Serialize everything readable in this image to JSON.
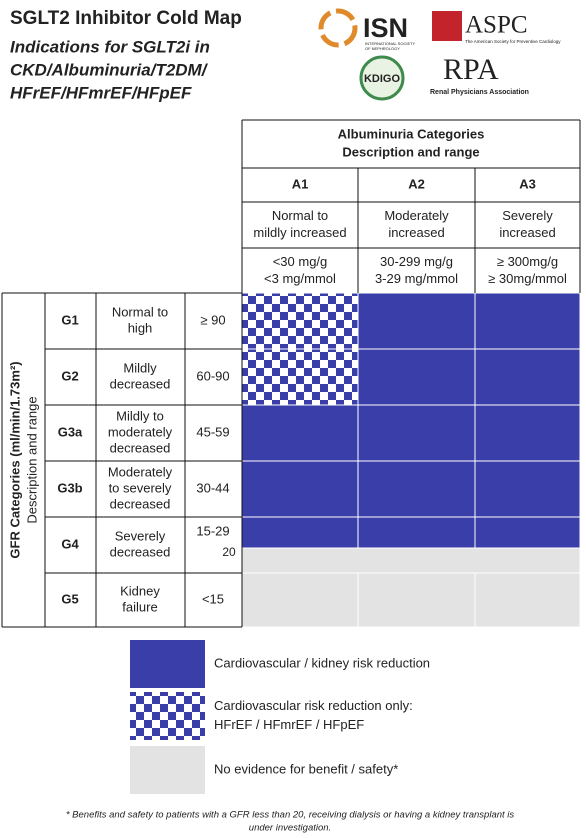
{
  "header": {
    "title": "SGLT2 Inhibitor Cold Map",
    "subtitle": [
      "Indications for SGLT2i in",
      "CKD/Albuminuria/T2DM/",
      "HFrEF/HFmrEF/HFpEF"
    ]
  },
  "logos": {
    "isn": "ISN",
    "isn_sub": [
      "INTERNATIONAL SOCIETY",
      "OF NEPHROLOGY"
    ],
    "aspc": "ASPC",
    "aspc_sub": "The American Society for Preventive Cardiology",
    "kdigo": "KDIGO",
    "rpa": "RPA",
    "rpa_sub": "Renal Physicians Association"
  },
  "table": {
    "albuminuria_title": [
      "Albuminuria Categories",
      "Description and range"
    ],
    "columns": [
      {
        "code": "A1",
        "description": [
          "Normal to",
          "mildly increased"
        ],
        "range": [
          "<30 mg/g",
          "<3 mg/mmol"
        ]
      },
      {
        "code": "A2",
        "description": [
          "Moderately",
          "increased"
        ],
        "range": [
          "30-299 mg/g",
          "3-29 mg/mmol"
        ]
      },
      {
        "code": "A3",
        "description": [
          "Severely",
          "increased"
        ],
        "range": [
          "≥ 300mg/g",
          "≥ 30mg/mmol"
        ]
      }
    ],
    "gfr_title": "GFR Categories (ml/min/1.73m²)",
    "gfr_subtitle": "Description and range",
    "rows": [
      {
        "code": "G1",
        "description": [
          "Normal to",
          "high"
        ],
        "range": [
          "≥ 90"
        ]
      },
      {
        "code": "G2",
        "description": [
          "Mildly",
          "decreased"
        ],
        "range": [
          "60-90"
        ]
      },
      {
        "code": "G3a",
        "description": [
          "Mildly to",
          "moderately",
          "decreased"
        ],
        "range": [
          "45-59"
        ]
      },
      {
        "code": "G3b",
        "description": [
          "Moderately",
          "to severely",
          "decreased"
        ],
        "range": [
          "30-44"
        ]
      },
      {
        "code": "G4",
        "description": [
          "Severely",
          "decreased"
        ],
        "range": [
          "15-29",
          "20"
        ]
      },
      {
        "code": "G5",
        "description": [
          "Kidney",
          "failure"
        ],
        "range": [
          "<15"
        ]
      }
    ]
  },
  "legend": [
    {
      "label": [
        "Cardiovascular / kidney risk reduction"
      ]
    },
    {
      "label": [
        "Cardiovascular risk reduction only:",
        "HFrEF / HFmrEF / HFpEF"
      ]
    },
    {
      "label": [
        "No evidence for benefit / safety*"
      ]
    }
  ],
  "footnote": [
    "* Benefits and safety to patients with a GFR less than 20, receiving dialysis or having a kidney transplant is",
    "under investigation."
  ]
}
